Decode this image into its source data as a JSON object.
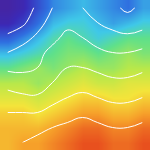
{
  "chart_data": {
    "type": "heatmap",
    "tick_labels": false,
    "zlim": [
      -30,
      30
    ],
    "temperature": [
      [
        -24,
        -22,
        -16,
        -10,
        -8,
        -6,
        -8,
        -10,
        -12,
        -8
      ],
      [
        -22,
        -18,
        -12,
        -6,
        -4,
        -4,
        -6,
        -8,
        -6,
        -4
      ],
      [
        -14,
        -10,
        -6,
        -2,
        0,
        -2,
        -4,
        -2,
        0,
        0
      ],
      [
        -6,
        -4,
        -2,
        0,
        2,
        2,
        0,
        2,
        4,
        2
      ],
      [
        0,
        2,
        4,
        2,
        4,
        6,
        4,
        4,
        6,
        6
      ],
      [
        6,
        6,
        4,
        6,
        8,
        10,
        8,
        8,
        10,
        10
      ],
      [
        10,
        10,
        8,
        10,
        12,
        14,
        14,
        12,
        12,
        14
      ],
      [
        14,
        14,
        12,
        14,
        16,
        18,
        18,
        16,
        16,
        18
      ],
      [
        16,
        16,
        16,
        18,
        20,
        22,
        22,
        20,
        20,
        22
      ],
      [
        16,
        18,
        18,
        20,
        22,
        24,
        24,
        22,
        22,
        24
      ]
    ],
    "geopotential": [
      [
        520,
        524,
        532,
        540,
        544,
        540,
        536,
        532,
        528,
        532
      ],
      [
        524,
        528,
        536,
        544,
        548,
        546,
        540,
        536,
        534,
        536
      ],
      [
        532,
        536,
        542,
        548,
        552,
        550,
        546,
        544,
        542,
        544
      ],
      [
        540,
        544,
        548,
        552,
        556,
        556,
        552,
        550,
        550,
        552
      ],
      [
        548,
        548,
        550,
        556,
        560,
        560,
        558,
        556,
        556,
        558
      ],
      [
        556,
        554,
        552,
        560,
        564,
        566,
        564,
        562,
        562,
        564
      ],
      [
        564,
        562,
        562,
        566,
        570,
        572,
        570,
        568,
        568,
        570
      ],
      [
        570,
        570,
        570,
        574,
        576,
        578,
        576,
        574,
        574,
        576
      ],
      [
        576,
        576,
        578,
        580,
        582,
        584,
        582,
        580,
        580,
        582
      ],
      [
        580,
        580,
        582,
        584,
        586,
        588,
        586,
        584,
        584,
        586
      ]
    ]
  }
}
